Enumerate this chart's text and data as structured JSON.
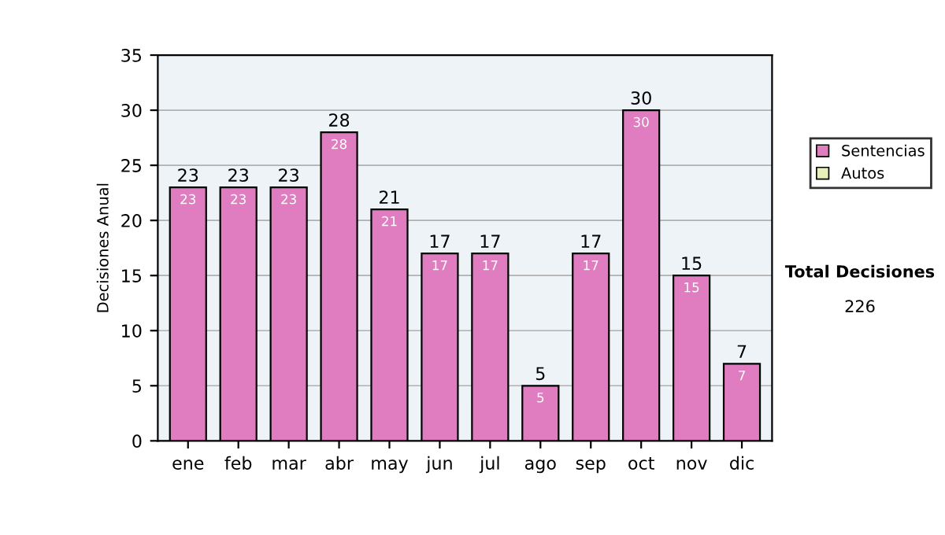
{
  "chart_data": {
    "type": "bar",
    "ylabel": "Decisiones Anual",
    "categories": [
      "ene",
      "feb",
      "mar",
      "abr",
      "may",
      "jun",
      "jul",
      "ago",
      "sep",
      "oct",
      "nov",
      "dic"
    ],
    "series": [
      {
        "name": "Sentencias",
        "color": "#e07cc0",
        "values": [
          23,
          23,
          23,
          28,
          21,
          17,
          17,
          5,
          17,
          30,
          15,
          7
        ]
      },
      {
        "name": "Autos",
        "color": "#e6f0b8",
        "values": [
          null,
          null,
          null,
          null,
          null,
          null,
          null,
          null,
          null,
          null,
          null,
          null
        ]
      }
    ],
    "stacked": true,
    "data_labels": true,
    "totals": [
      "23",
      "23",
      "23",
      "28",
      "21",
      "17",
      "17",
      "5",
      "17",
      "30",
      "15",
      "7"
    ],
    "ylim": [
      0,
      35
    ],
    "yticks": [
      0,
      5,
      10,
      15,
      20,
      25,
      30,
      35
    ],
    "grid": "y",
    "legend": "right",
    "annotations": [
      "Total Decisiones",
      "226"
    ]
  }
}
